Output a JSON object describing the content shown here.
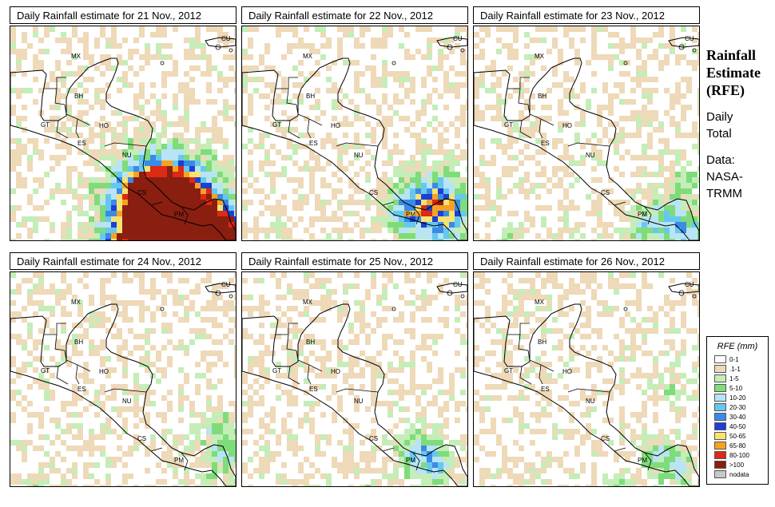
{
  "panels": [
    {
      "title": "Daily Rainfall estimate for  21 Nov., 2012",
      "seed": 11,
      "intensity": 1.0,
      "cells": [
        [
          170,
          210,
          3.5,
          50
        ],
        [
          205,
          210,
          3.2,
          48
        ],
        [
          230,
          238,
          3,
          40
        ],
        [
          160,
          252,
          3,
          42
        ],
        [
          180,
          282,
          3,
          35
        ],
        [
          262,
          282,
          3,
          40
        ],
        [
          265,
          262,
          2.5,
          30
        ],
        [
          240,
          275,
          2.5,
          35
        ],
        [
          120,
          285,
          2,
          25
        ],
        [
          70,
          285,
          1.8,
          18
        ]
      ]
    },
    {
      "title": "Daily Rainfall estimate for  22 Nov., 2012",
      "seed": 23,
      "intensity": 0.75,
      "cells": [
        [
          230,
          218,
          3.2,
          38
        ],
        [
          255,
          225,
          2.5,
          30
        ],
        [
          200,
          230,
          2,
          25
        ],
        [
          60,
          288,
          2,
          20
        ],
        [
          150,
          290,
          1.6,
          18
        ],
        [
          110,
          285,
          1.8,
          20
        ],
        [
          250,
          270,
          2,
          22
        ]
      ]
    },
    {
      "title": "Daily Rainfall estimate for  23 Nov., 2012",
      "seed": 37,
      "intensity": 0.6,
      "cells": [
        [
          240,
          240,
          2.8,
          32
        ],
        [
          265,
          255,
          2.3,
          25
        ],
        [
          260,
          190,
          1.7,
          20
        ],
        [
          205,
          250,
          1.6,
          20
        ],
        [
          40,
          270,
          1.4,
          16
        ]
      ]
    },
    {
      "title": "Daily Rainfall estimate for  24 Nov., 2012",
      "seed": 41,
      "intensity": 0.55,
      "cells": [
        [
          258,
          200,
          2.4,
          26
        ],
        [
          268,
          230,
          2.2,
          20
        ],
        [
          240,
          260,
          1.6,
          18
        ],
        [
          25,
          268,
          1.6,
          16
        ]
      ]
    },
    {
      "title": "Daily Rainfall estimate for  25 Nov., 2012",
      "seed": 53,
      "intensity": 0.6,
      "cells": [
        [
          220,
          222,
          3,
          28
        ],
        [
          240,
          240,
          2.2,
          22
        ],
        [
          160,
          270,
          1.5,
          16
        ],
        [
          100,
          285,
          1.3,
          14
        ]
      ]
    },
    {
      "title": "Daily Rainfall estimate for  26 Nov., 2012",
      "seed": 67,
      "intensity": 0.55,
      "cells": [
        [
          225,
          225,
          2.2,
          24
        ],
        [
          250,
          240,
          2.4,
          22
        ],
        [
          175,
          265,
          1.6,
          18
        ],
        [
          240,
          140,
          1.4,
          18
        ],
        [
          260,
          280,
          1.7,
          20
        ]
      ]
    }
  ],
  "country_labels": [
    {
      "text": "MX",
      "x": 76,
      "y": 40
    },
    {
      "text": "CU",
      "x": 264,
      "y": 18
    },
    {
      "text": "BH",
      "x": 80,
      "y": 90
    },
    {
      "text": "GT",
      "x": 38,
      "y": 126
    },
    {
      "text": "HO",
      "x": 111,
      "y": 127
    },
    {
      "text": "ES",
      "x": 84,
      "y": 149
    },
    {
      "text": "NU",
      "x": 140,
      "y": 164
    },
    {
      "text": "CS",
      "x": 159,
      "y": 211
    },
    {
      "text": "PM",
      "x": 205,
      "y": 238
    }
  ],
  "side": {
    "title_line1": "Rainfall",
    "title_line2": "Estimate",
    "title_line3": "(RFE)",
    "daily_line1": "Daily",
    "daily_line2": "Total",
    "data_line1": "Data:",
    "data_line2": "NASA-",
    "data_line3": "TRMM"
  },
  "legend": {
    "title": "RFE (mm)",
    "entries": [
      {
        "label": "0-1",
        "color": "#ffffff"
      },
      {
        "label": ".1-1",
        "color": "#eed9b8"
      },
      {
        "label": "1-5",
        "color": "#c4edb8"
      },
      {
        "label": "5-10",
        "color": "#7fdc7a"
      },
      {
        "label": "10-20",
        "color": "#b8e4f5"
      },
      {
        "label": "20-30",
        "color": "#66c8ee"
      },
      {
        "label": "30-40",
        "color": "#3a8ae6"
      },
      {
        "label": "40-50",
        "color": "#1c3fd6"
      },
      {
        "label": "50-65",
        "color": "#f7e372"
      },
      {
        "label": "65-80",
        "color": "#f6a224"
      },
      {
        "label": "80-100",
        "color": "#dc2a14"
      },
      {
        "label": ">100",
        "color": "#8a1e10"
      },
      {
        "label": "nodata",
        "color": "#c8c8c8"
      }
    ]
  }
}
